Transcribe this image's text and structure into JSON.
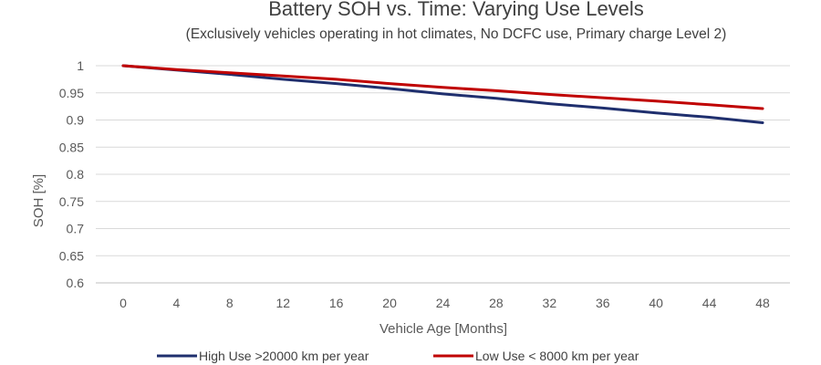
{
  "chart_data": {
    "type": "line",
    "title": "Battery SOH vs. Time: Varying Use Levels",
    "subtitle": "(Exclusively vehicles operating in hot climates, No DCFC use, Primary charge Level 2)",
    "xlabel": "Vehicle Age [Months]",
    "ylabel": "SOH [%]",
    "x": [
      0,
      4,
      8,
      12,
      16,
      20,
      24,
      28,
      32,
      36,
      40,
      44,
      48
    ],
    "xticks": [
      "0",
      "4",
      "8",
      "12",
      "16",
      "20",
      "24",
      "28",
      "32",
      "36",
      "40",
      "44",
      "48"
    ],
    "yticks": [
      "1",
      "0.95",
      "0.9",
      "0.85",
      "0.8",
      "0.75",
      "0.7",
      "0.65",
      "0.6"
    ],
    "xlim": [
      0,
      48
    ],
    "ylim": [
      0.6,
      1.0
    ],
    "grid": true,
    "legend_position": "bottom",
    "series": [
      {
        "name": "High Use >20000 km per year",
        "color": "#1f2f6e",
        "values": [
          1.0,
          0.992,
          0.984,
          0.975,
          0.967,
          0.958,
          0.948,
          0.94,
          0.93,
          0.922,
          0.913,
          0.905,
          0.895
        ]
      },
      {
        "name": "Low Use < 8000 km per year",
        "color": "#c00000",
        "values": [
          1.0,
          0.993,
          0.987,
          0.981,
          0.975,
          0.967,
          0.96,
          0.954,
          0.947,
          0.941,
          0.935,
          0.928,
          0.921
        ]
      }
    ]
  }
}
